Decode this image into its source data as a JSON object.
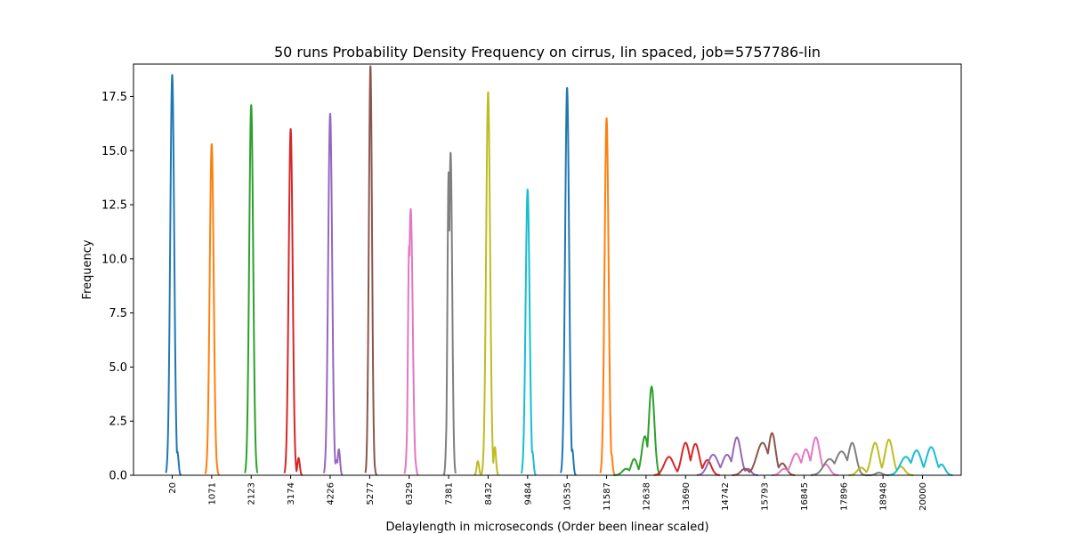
{
  "chart_data": {
    "type": "line",
    "title": "50 runs Probability Density Frequency on cirrus, lin spaced, job=5757786-lin",
    "xlabel": "Delaylength in microseconds (Order been linear scaled)",
    "ylabel": "Frequency",
    "ylim": [
      0,
      19.0
    ],
    "yticks": [
      "0.0",
      "2.5",
      "5.0",
      "7.5",
      "10.0",
      "12.5",
      "15.0",
      "17.5"
    ],
    "ytick_values": [
      0,
      2.5,
      5.0,
      7.5,
      10.0,
      12.5,
      15.0,
      17.5
    ],
    "categories": [
      "20",
      "1071",
      "2123",
      "3174",
      "4226",
      "5277",
      "6329",
      "7381",
      "8432",
      "9484",
      "10535",
      "11587",
      "12638",
      "13690",
      "14742",
      "15793",
      "16845",
      "17896",
      "18948",
      "20000"
    ],
    "legend": "none",
    "grid": false,
    "series": [
      {
        "color": "#1f77b4",
        "peaks": [
          {
            "mu": 0.0,
            "sigma": 0.05,
            "h": 18.5
          },
          {
            "mu": -0.02,
            "sigma": 0.04,
            "h": 8.0
          },
          {
            "mu": 0.13,
            "sigma": 0.03,
            "h": 1.1
          }
        ]
      },
      {
        "color": "#ff7f0e",
        "peaks": [
          {
            "mu": 0.0,
            "sigma": 0.05,
            "h": 15.3
          },
          {
            "mu": -0.07,
            "sigma": 0.03,
            "h": 1.9
          },
          {
            "mu": 0.02,
            "sigma": 0.03,
            "h": 8.5
          },
          {
            "mu": 0.1,
            "sigma": 0.03,
            "h": 0.95
          }
        ]
      },
      {
        "color": "#2ca02c",
        "peaks": [
          {
            "mu": 0.0,
            "sigma": 0.05,
            "h": 17.1
          },
          {
            "mu": -0.05,
            "sigma": 0.03,
            "h": 2.1
          },
          {
            "mu": -0.01,
            "sigma": 0.03,
            "h": 9.8
          },
          {
            "mu": 0.06,
            "sigma": 0.02,
            "h": 1.2
          }
        ]
      },
      {
        "color": "#d62728",
        "peaks": [
          {
            "mu": 0.0,
            "sigma": 0.05,
            "h": 16.0
          },
          {
            "mu": 0.2,
            "sigma": 0.03,
            "h": 0.8
          }
        ]
      },
      {
        "color": "#9467bd",
        "peaks": [
          {
            "mu": 0.0,
            "sigma": 0.05,
            "h": 16.7
          },
          {
            "mu": 0.16,
            "sigma": 0.04,
            "h": 0.7
          },
          {
            "mu": 0.22,
            "sigma": 0.03,
            "h": 1.2
          }
        ]
      },
      {
        "color": "#8c564b",
        "peaks": [
          {
            "mu": 0.02,
            "sigma": 0.04,
            "h": 18.9
          },
          {
            "mu": 0.0,
            "sigma": 0.03,
            "h": 10.9
          },
          {
            "mu": 0.05,
            "sigma": 0.03,
            "h": 3.1
          },
          {
            "mu": 0.09,
            "sigma": 0.03,
            "h": 1.1
          }
        ]
      },
      {
        "color": "#e377c2",
        "peaks": [
          {
            "mu": 0.04,
            "sigma": 0.05,
            "h": 12.3
          },
          {
            "mu": 0.0,
            "sigma": 0.03,
            "h": 10.6
          },
          {
            "mu": 0.14,
            "sigma": 0.03,
            "h": 0.9
          }
        ]
      },
      {
        "color": "#7f7f7f",
        "peaks": [
          {
            "mu": 0.05,
            "sigma": 0.04,
            "h": 14.9
          },
          {
            "mu": 0.0,
            "sigma": 0.03,
            "h": 14.0
          },
          {
            "mu": -0.03,
            "sigma": 0.03,
            "h": 3.4
          }
        ]
      },
      {
        "color": "#bcbd22",
        "peaks": [
          {
            "mu": 0.0,
            "sigma": 0.05,
            "h": 17.7
          },
          {
            "mu": -0.26,
            "sigma": 0.03,
            "h": 0.65
          },
          {
            "mu": 0.17,
            "sigma": 0.03,
            "h": 1.3
          }
        ]
      },
      {
        "color": "#17becf",
        "peaks": [
          {
            "mu": 0.0,
            "sigma": 0.05,
            "h": 13.2
          },
          {
            "mu": 0.03,
            "sigma": 0.03,
            "h": 6.0
          },
          {
            "mu": 0.12,
            "sigma": 0.03,
            "h": 1.1
          }
        ]
      },
      {
        "color": "#1f77b4",
        "peaks": [
          {
            "mu": 0.0,
            "sigma": 0.05,
            "h": 17.9
          },
          {
            "mu": -0.04,
            "sigma": 0.03,
            "h": 9.1
          },
          {
            "mu": 0.13,
            "sigma": 0.03,
            "h": 1.2
          }
        ]
      },
      {
        "color": "#ff7f0e",
        "peaks": [
          {
            "mu": 0.0,
            "sigma": 0.05,
            "h": 16.5
          },
          {
            "mu": -0.04,
            "sigma": 0.03,
            "h": 10.4
          },
          {
            "mu": 0.12,
            "sigma": 0.03,
            "h": 1.0
          }
        ]
      },
      {
        "color": "#2ca02c",
        "peaks": [
          {
            "mu": 0.14,
            "sigma": 0.07,
            "h": 4.1
          },
          {
            "mu": -0.03,
            "sigma": 0.08,
            "h": 1.8
          },
          {
            "mu": -0.3,
            "sigma": 0.08,
            "h": 0.75
          },
          {
            "mu": -0.5,
            "sigma": 0.1,
            "h": 0.3
          }
        ]
      },
      {
        "color": "#d62728",
        "peaks": [
          {
            "mu": -0.42,
            "sigma": 0.12,
            "h": 0.85
          },
          {
            "mu": 0.0,
            "sigma": 0.1,
            "h": 1.5
          },
          {
            "mu": 0.25,
            "sigma": 0.1,
            "h": 1.45
          },
          {
            "mu": 0.55,
            "sigma": 0.1,
            "h": 0.7
          }
        ]
      },
      {
        "color": "#9467bd",
        "peaks": [
          {
            "mu": -0.3,
            "sigma": 0.13,
            "h": 0.95
          },
          {
            "mu": 0.05,
            "sigma": 0.12,
            "h": 0.95
          },
          {
            "mu": 0.3,
            "sigma": 0.1,
            "h": 1.75
          },
          {
            "mu": 0.58,
            "sigma": 0.08,
            "h": 0.3
          }
        ]
      },
      {
        "color": "#8c564b",
        "peaks": [
          {
            "mu": -0.5,
            "sigma": 0.1,
            "h": 0.3
          },
          {
            "mu": -0.05,
            "sigma": 0.15,
            "h": 1.5
          },
          {
            "mu": 0.19,
            "sigma": 0.09,
            "h": 1.95
          },
          {
            "mu": 0.45,
            "sigma": 0.1,
            "h": 0.55
          }
        ]
      },
      {
        "color": "#e377c2",
        "peaks": [
          {
            "mu": -0.5,
            "sigma": 0.1,
            "h": 0.3
          },
          {
            "mu": -0.2,
            "sigma": 0.12,
            "h": 1.0
          },
          {
            "mu": 0.05,
            "sigma": 0.1,
            "h": 1.2
          },
          {
            "mu": 0.3,
            "sigma": 0.1,
            "h": 1.75
          },
          {
            "mu": 0.55,
            "sigma": 0.1,
            "h": 0.5
          }
        ]
      },
      {
        "color": "#7f7f7f",
        "peaks": [
          {
            "mu": -0.35,
            "sigma": 0.15,
            "h": 0.75
          },
          {
            "mu": -0.05,
            "sigma": 0.15,
            "h": 1.1
          },
          {
            "mu": 0.22,
            "sigma": 0.1,
            "h": 1.5
          },
          {
            "mu": 0.9,
            "sigma": 0.08,
            "h": 0.12
          }
        ]
      },
      {
        "color": "#bcbd22",
        "peaks": [
          {
            "mu": -0.55,
            "sigma": 0.1,
            "h": 0.35
          },
          {
            "mu": -0.2,
            "sigma": 0.1,
            "h": 1.5
          },
          {
            "mu": 0.15,
            "sigma": 0.1,
            "h": 1.65
          },
          {
            "mu": 0.45,
            "sigma": 0.1,
            "h": 0.4
          }
        ]
      },
      {
        "color": "#17becf",
        "peaks": [
          {
            "mu": -0.42,
            "sigma": 0.14,
            "h": 0.85
          },
          {
            "mu": -0.15,
            "sigma": 0.12,
            "h": 1.15
          },
          {
            "mu": 0.22,
            "sigma": 0.12,
            "h": 1.3
          },
          {
            "mu": 0.48,
            "sigma": 0.09,
            "h": 0.5
          }
        ]
      }
    ]
  }
}
